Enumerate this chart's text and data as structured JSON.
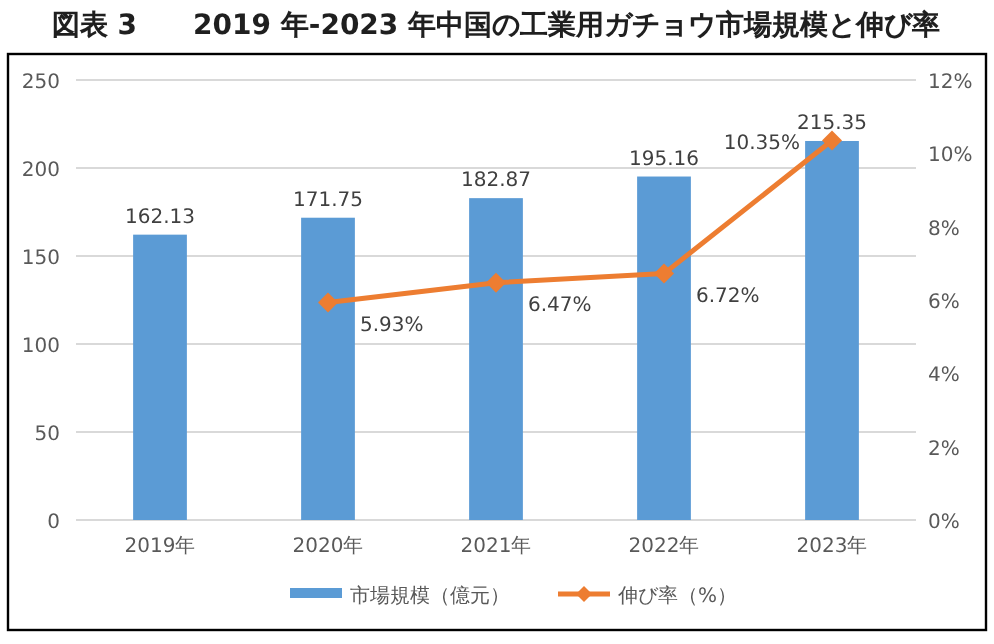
{
  "chart_data": {
    "type": "bar",
    "title": "図表 3　　2019 年-2023 年中国の工業用ガチョウ市場規模と伸び率",
    "categories": [
      "2019年",
      "2020年",
      "2021年",
      "2022年",
      "2023年"
    ],
    "series": [
      {
        "name": "市場規模（億元）",
        "color": "#5b9bd5",
        "values": [
          162.13,
          171.75,
          182.87,
          195.16,
          215.35
        ],
        "value_labels": [
          "162.13",
          "171.75",
          "182.87",
          "195.16",
          "215.35"
        ]
      },
      {
        "name": "伸び率（%）",
        "color": "#ed7d31",
        "type": "line",
        "axis": "y2",
        "marker": "diamond",
        "values": [
          null,
          5.93,
          6.47,
          6.72,
          10.35
        ],
        "value_labels": [
          null,
          "5.93%",
          "6.47%",
          "6.72%",
          "10.35%"
        ]
      }
    ],
    "ylim": [
      0,
      250
    ],
    "yticks": [
      0,
      50,
      100,
      150,
      200,
      250
    ],
    "y2lim": [
      0,
      12
    ],
    "y2ticks": [
      {
        "value": 0,
        "label": "0%"
      },
      {
        "value": 2,
        "label": "2%"
      },
      {
        "value": 4,
        "label": "4%"
      },
      {
        "value": 6,
        "label": "6%"
      },
      {
        "value": 8,
        "label": "8%"
      },
      {
        "value": 10,
        "label": "10%"
      },
      {
        "value": 12,
        "label": "12%"
      }
    ],
    "grid": "y",
    "legend": "bottom"
  }
}
